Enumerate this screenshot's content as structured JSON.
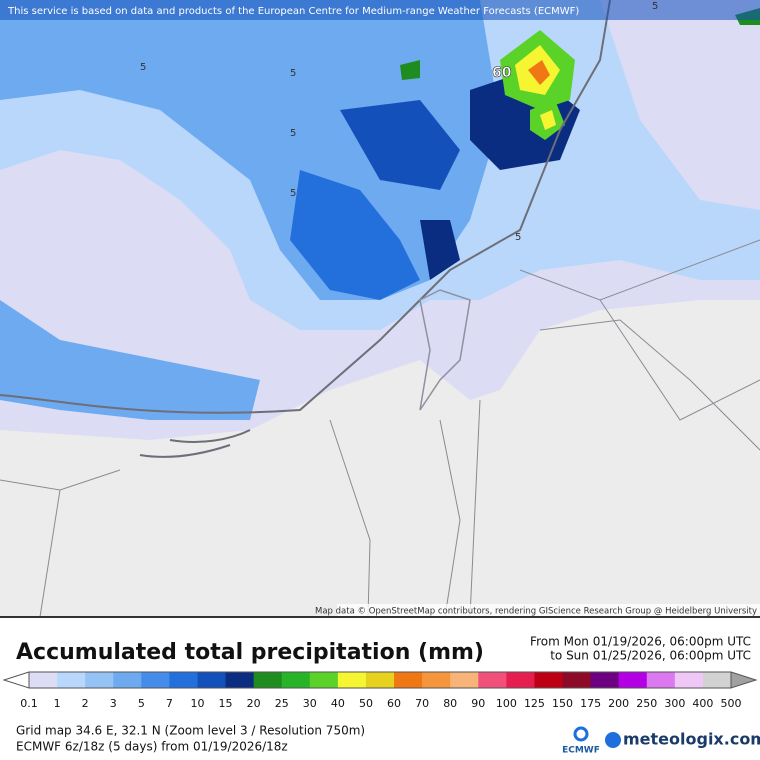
{
  "map": {
    "notice": "This service is based on data and products of the European Centre for Medium-range Weather Forecasts (ECMWF)",
    "attribution": "Map data © OpenStreetMap contributors, rendering GIScience Research Group @ Heidelberg University",
    "contour_labels": [
      "5",
      "5",
      "5",
      "5",
      "5",
      "60",
      "5"
    ]
  },
  "legend": {
    "title": "Accumulated total precipitation (mm)",
    "period_from": "From Mon 01/19/2026, 06:00pm UTC",
    "period_to": "to Sun 01/25/2026, 06:00pm UTC",
    "levels": [
      0.1,
      1,
      2,
      3,
      5,
      7,
      10,
      15,
      20,
      25,
      30,
      40,
      50,
      60,
      70,
      80,
      90,
      100,
      125,
      150,
      175,
      200,
      250,
      300,
      400,
      500
    ],
    "colors": [
      "#dcdcf5",
      "#b9d7fa",
      "#96c3f5",
      "#6eaaf0",
      "#468ceb",
      "#2370dc",
      "#1450b9",
      "#0a2d82",
      "#1e8c1e",
      "#28b428",
      "#5ad228",
      "#f5f532",
      "#e6d21e",
      "#f07814",
      "#f5963c",
      "#f8b478",
      "#f0507a",
      "#e61e50",
      "#be0014",
      "#8c0a28",
      "#6e0082",
      "#b400e6",
      "#dc78f0",
      "#f0c8f8",
      "#d2d2d2"
    ],
    "under_color": "#ffffff",
    "over_color": "#a0a0a0"
  },
  "footer": {
    "grid": "Grid map 34.6 E, 32.1 N (Zoom level 3 / Resolution 750m)",
    "model": "ECMWF 6z/18z (5 days) from  01/19/2026/18z",
    "ecmwf_logo": "ECMWF",
    "brand": "meteologix.com"
  }
}
